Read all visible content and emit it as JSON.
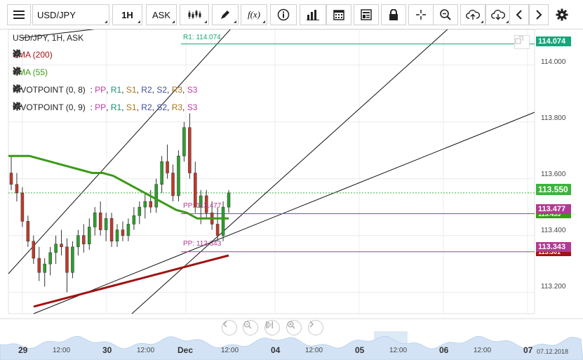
{
  "toolbar": {
    "symbol": "USD/JPY",
    "interval": "1H",
    "price_type": "ASK",
    "icons": [
      "menu-icon",
      "candles-icon",
      "pencil-icon",
      "function-icon",
      "info-icon",
      "bar-chart-icon",
      "calendar-icon",
      "news-icon",
      "lock-icon",
      "crosshair-icon",
      "zoom-icon",
      "upload-icon",
      "download-icon",
      "chevron-left-icon",
      "chevron-right-icon",
      "gear-icon"
    ]
  },
  "legend": {
    "title": "USD/JPY, 1H, ASK",
    "sma200": "SMA (200)",
    "sma55": "SMA (55)",
    "pivot1": "PIVOTPOINT (0, 8)",
    "pivot2": "PIVOTPOINT (0, 9)",
    "sep": ":",
    "pivot_levels": [
      "PP",
      "R1",
      "S1",
      "R2",
      "S2",
      "R3",
      "S3"
    ],
    "comma": ","
  },
  "lines": {
    "r1_label": "R1: 114.074",
    "pp1_label": "PP: 113.477",
    "pp2_label": "PP: 113.343"
  },
  "price_labels": {
    "r1": "114.074",
    "current": "113.550",
    "pp1": "113.477",
    "sma55": "113.455",
    "pp2": "113.343",
    "sma200": "113.301"
  },
  "colors": {
    "up": "#2ba02b",
    "down": "#c0392b",
    "sma200": "#a11212",
    "sma55": "#3a9a17",
    "r1": "#17a67c",
    "pp": "#b23a92",
    "current": "#3cb33c"
  },
  "y_axis": [
    "114.000",
    "113.800",
    "113.600",
    "113.400",
    "113.200"
  ],
  "x_axis": {
    "major": [
      "29",
      "30",
      "Dec",
      "04",
      "05",
      "06",
      "07"
    ],
    "minor": [
      "12:00",
      "12:00",
      "12:00",
      "12:00",
      "12:00",
      "12:00"
    ],
    "end_date": "07.12.2018"
  },
  "chart_data": {
    "type": "candlestick",
    "symbol": "USD/JPY",
    "interval": "1H",
    "ylim": [
      113.125,
      114.125
    ],
    "y_ticks": [
      113.2,
      113.4,
      113.6,
      113.8,
      114.0
    ],
    "x_labels": [
      "29",
      "12:00",
      "30",
      "12:00",
      "Dec",
      "12:00",
      "04",
      "12:00",
      "05",
      "12:00",
      "06",
      "12:00",
      "07"
    ],
    "candles_ohlc": [
      [
        113.62,
        113.68,
        113.56,
        113.58
      ],
      [
        113.58,
        113.62,
        113.52,
        113.55
      ],
      [
        113.55,
        113.57,
        113.43,
        113.45
      ],
      [
        113.45,
        113.47,
        113.36,
        113.38
      ],
      [
        113.38,
        113.4,
        113.3,
        113.32
      ],
      [
        113.32,
        113.36,
        113.24,
        113.27
      ],
      [
        113.27,
        113.32,
        113.22,
        113.3
      ],
      [
        113.3,
        113.36,
        113.26,
        113.34
      ],
      [
        113.34,
        113.4,
        113.3,
        113.37
      ],
      [
        113.37,
        113.42,
        113.33,
        113.36
      ],
      [
        113.36,
        113.39,
        113.2,
        113.27
      ],
      [
        113.27,
        113.38,
        113.25,
        113.36
      ],
      [
        113.36,
        113.42,
        113.33,
        113.4
      ],
      [
        113.4,
        113.44,
        113.34,
        113.37
      ],
      [
        113.37,
        113.46,
        113.35,
        113.43
      ],
      [
        113.43,
        113.5,
        113.4,
        113.48
      ],
      [
        113.48,
        113.52,
        113.4,
        113.42
      ],
      [
        113.42,
        113.48,
        113.38,
        113.46
      ],
      [
        113.46,
        113.48,
        113.36,
        113.38
      ],
      [
        113.38,
        113.44,
        113.36,
        113.42
      ],
      [
        113.42,
        113.45,
        113.38,
        113.4
      ],
      [
        113.4,
        113.46,
        113.38,
        113.44
      ],
      [
        113.44,
        113.5,
        113.42,
        113.47
      ],
      [
        113.47,
        113.52,
        113.44,
        113.5
      ],
      [
        113.5,
        113.55,
        113.46,
        113.52
      ],
      [
        113.52,
        113.56,
        113.48,
        113.5
      ],
      [
        113.5,
        113.6,
        113.48,
        113.58
      ],
      [
        113.58,
        113.68,
        113.55,
        113.66
      ],
      [
        113.66,
        113.72,
        113.6,
        113.62
      ],
      [
        113.62,
        113.65,
        113.52,
        113.54
      ],
      [
        113.54,
        113.7,
        113.52,
        113.68
      ],
      [
        113.68,
        113.8,
        113.66,
        113.78
      ],
      [
        113.78,
        113.83,
        113.6,
        113.62
      ],
      [
        113.62,
        113.66,
        113.48,
        113.5
      ],
      [
        113.5,
        113.56,
        113.44,
        113.54
      ],
      [
        113.54,
        113.56,
        113.46,
        113.48
      ],
      [
        113.48,
        113.52,
        113.42,
        113.44
      ],
      [
        113.44,
        113.5,
        113.38,
        113.4
      ],
      [
        113.4,
        113.52,
        113.38,
        113.5
      ],
      [
        113.5,
        113.56,
        113.48,
        113.55
      ]
    ],
    "sma55_values": [
      113.68,
      113.68,
      113.68,
      113.67,
      113.66,
      113.65,
      113.64,
      113.63,
      113.62,
      113.62,
      113.61,
      113.59,
      113.57,
      113.55,
      113.53,
      113.51,
      113.49,
      113.48,
      113.46,
      113.46,
      113.46,
      113.46
    ],
    "sma200_values": [
      113.15,
      113.16,
      113.17,
      113.18,
      113.19,
      113.2,
      113.21,
      113.22,
      113.23,
      113.24,
      113.25,
      113.26,
      113.27,
      113.28,
      113.29,
      113.3,
      113.31,
      113.32,
      113.33
    ],
    "levels": {
      "R1": 114.074,
      "PP1": 113.477,
      "PP2": 113.343,
      "current": 113.55
    }
  }
}
